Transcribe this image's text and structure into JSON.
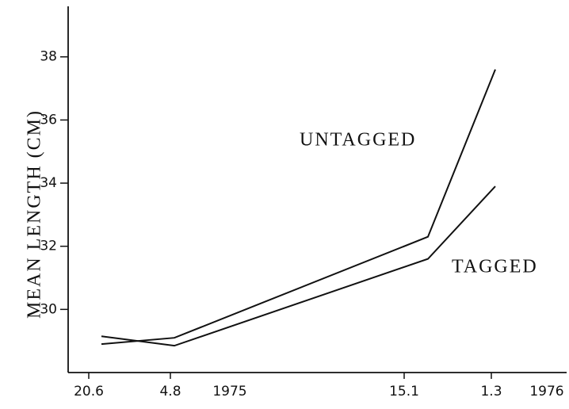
{
  "chart_data": {
    "type": "line",
    "y_label": "MEAN LENGTH (CM)",
    "categories": [
      "20.6",
      "4.8",
      "15.1",
      "1.3"
    ],
    "year_labels": [
      "1975",
      "1976"
    ],
    "series": [
      {
        "name": "UNTAGGED",
        "color": "#111111",
        "values": [
          28.9,
          29.1,
          32.3,
          37.6
        ]
      },
      {
        "name": "TAGGED",
        "color": "#111111",
        "values": [
          29.15,
          28.85,
          31.6,
          33.9
        ]
      }
    ],
    "ylim": [
      28,
      39.6
    ],
    "yticks": [
      30,
      32,
      34,
      36,
      38
    ]
  }
}
